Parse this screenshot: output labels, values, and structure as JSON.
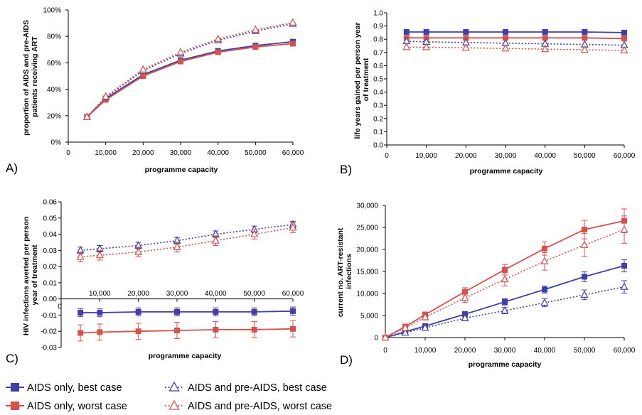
{
  "colors": {
    "best": "#3f3fa8",
    "worst": "#d8504b",
    "axis": "#000000"
  },
  "legend": [
    {
      "label": "AIDS only, best case",
      "series": "best",
      "style": "solid",
      "marker": "square"
    },
    {
      "label": "AIDS and pre-AIDS, best case",
      "series": "best",
      "style": "dotted",
      "marker": "triangle"
    },
    {
      "label": "AIDS only, worst case",
      "series": "worst",
      "style": "solid",
      "marker": "square"
    },
    {
      "label": "AIDS and pre-AIDS, worst case",
      "series": "worst",
      "style": "dotted",
      "marker": "triangle"
    }
  ],
  "chart_data": [
    {
      "panel": "A)",
      "type": "line",
      "xlabel": "programme capacity",
      "ylabel": [
        "proportion of AIDS and pre-AIDS",
        "patients receiving ART"
      ],
      "x_ticks": [
        "0",
        "10,000",
        "20,000",
        "30,000",
        "40,000",
        "50,000",
        "60,000"
      ],
      "y_ticks": [
        "0%",
        "20%",
        "40%",
        "60%",
        "80%",
        "100%"
      ],
      "xlim": [
        0,
        60000
      ],
      "ylim": [
        0,
        1
      ],
      "x": [
        5000,
        10000,
        20000,
        30000,
        40000,
        50000,
        60000
      ],
      "series": [
        {
          "key": "aids_best",
          "values": [
            0.19,
            0.33,
            0.51,
            0.62,
            0.69,
            0.73,
            0.76
          ]
        },
        {
          "key": "aids_worst",
          "values": [
            0.19,
            0.32,
            0.5,
            0.61,
            0.68,
            0.72,
            0.745
          ]
        },
        {
          "key": "pre_best",
          "values": [
            0.19,
            0.34,
            0.54,
            0.67,
            0.77,
            0.84,
            0.895
          ]
        },
        {
          "key": "pre_worst",
          "values": [
            0.19,
            0.345,
            0.55,
            0.68,
            0.78,
            0.85,
            0.905
          ]
        }
      ]
    },
    {
      "panel": "B)",
      "type": "line",
      "xlabel": "programme capacity",
      "ylabel": [
        "life years gained per person year",
        "of treatment"
      ],
      "x_ticks": [
        "0",
        "10,000",
        "20,000",
        "30,000",
        "40,000",
        "50,000",
        "60,000"
      ],
      "y_ticks": [
        "0.0",
        "0.1",
        "0.2",
        "0.3",
        "0.4",
        "0.5",
        "0.6",
        "0.7",
        "0.8",
        "0.9",
        "1.0"
      ],
      "xlim": [
        0,
        60000
      ],
      "ylim": [
        0,
        1
      ],
      "x": [
        5000,
        10000,
        20000,
        30000,
        40000,
        50000,
        60000
      ],
      "series": [
        {
          "key": "aids_best",
          "values": [
            0.855,
            0.855,
            0.855,
            0.855,
            0.855,
            0.855,
            0.85
          ]
        },
        {
          "key": "aids_worst",
          "values": [
            0.81,
            0.81,
            0.81,
            0.81,
            0.81,
            0.81,
            0.805
          ]
        },
        {
          "key": "pre_best",
          "values": [
            0.785,
            0.78,
            0.775,
            0.77,
            0.765,
            0.76,
            0.755
          ]
        },
        {
          "key": "pre_worst",
          "values": [
            0.74,
            0.74,
            0.735,
            0.73,
            0.725,
            0.72,
            0.715
          ]
        }
      ]
    },
    {
      "panel": "C)",
      "type": "line",
      "xlabel": "programme capacity",
      "ylabel": [
        "HIV infections averted per person",
        "year of treatment"
      ],
      "x_ticks": [
        "0",
        "10,000",
        "20,000",
        "30,000",
        "40,000",
        "50,000",
        "60,000"
      ],
      "y_ticks": [
        "-0.03",
        "-0.02",
        "-0.01",
        "0.00",
        "0.01",
        "0.02",
        "0.03",
        "0.04",
        "0.05",
        "0.06"
      ],
      "xlim": [
        0,
        60000
      ],
      "ylim": [
        -0.03,
        0.06
      ],
      "x": [
        5000,
        10000,
        20000,
        30000,
        40000,
        50000,
        60000
      ],
      "series": [
        {
          "key": "aids_best",
          "values": [
            -0.0085,
            -0.0085,
            -0.008,
            -0.008,
            -0.008,
            -0.008,
            -0.0075
          ],
          "err": [
            0.0025,
            0.0025,
            0.0025,
            0.0025,
            0.0025,
            0.0025,
            0.0025
          ]
        },
        {
          "key": "aids_worst",
          "values": [
            -0.021,
            -0.0205,
            -0.02,
            -0.0195,
            -0.019,
            -0.019,
            -0.0185
          ],
          "err": [
            0.005,
            0.005,
            0.005,
            0.005,
            0.005,
            0.005,
            0.005
          ]
        },
        {
          "key": "pre_best",
          "values": [
            0.03,
            0.031,
            0.033,
            0.036,
            0.04,
            0.043,
            0.046
          ],
          "err": [
            0.002,
            0.002,
            0.002,
            0.002,
            0.002,
            0.002,
            0.002
          ]
        },
        {
          "key": "pre_worst",
          "values": [
            0.026,
            0.027,
            0.029,
            0.032,
            0.036,
            0.04,
            0.044
          ],
          "err": [
            0.003,
            0.003,
            0.003,
            0.003,
            0.003,
            0.003,
            0.003
          ]
        }
      ]
    },
    {
      "panel": "D)",
      "type": "line",
      "xlabel": "programme capacity",
      "ylabel": [
        "current no. ART-resistant",
        "infections"
      ],
      "x_ticks": [
        "0",
        "10,000",
        "20,000",
        "30,000",
        "40,000",
        "50,000",
        "60,000"
      ],
      "y_ticks": [
        "0",
        "5,000",
        "10,000",
        "15,000",
        "20,000",
        "25,000",
        "30,000"
      ],
      "xlim": [
        0,
        60000
      ],
      "ylim": [
        0,
        30000
      ],
      "x": [
        0,
        5000,
        10000,
        20000,
        30000,
        40000,
        50000,
        60000
      ],
      "series": [
        {
          "key": "aids_best",
          "values": [
            0,
            1300,
            2600,
            5300,
            8100,
            10900,
            13800,
            16300
          ],
          "err": [
            0,
            300,
            400,
            600,
            700,
            800,
            1100,
            1400
          ]
        },
        {
          "key": "aids_worst",
          "values": [
            0,
            2500,
            5200,
            10400,
            15400,
            20200,
            24500,
            26500
          ],
          "err": [
            0,
            400,
            600,
            900,
            1200,
            1500,
            2100,
            2700
          ]
        },
        {
          "key": "pre_best",
          "values": [
            0,
            1100,
            2200,
            4400,
            6100,
            7900,
            9700,
            11500
          ],
          "err": [
            0,
            300,
            400,
            600,
            700,
            900,
            1100,
            1400
          ]
        },
        {
          "key": "pre_worst",
          "values": [
            0,
            2200,
            4600,
            9000,
            13200,
            17300,
            21000,
            24500
          ],
          "err": [
            0,
            400,
            600,
            1000,
            1500,
            2000,
            2600,
            3100
          ]
        }
      ]
    }
  ]
}
